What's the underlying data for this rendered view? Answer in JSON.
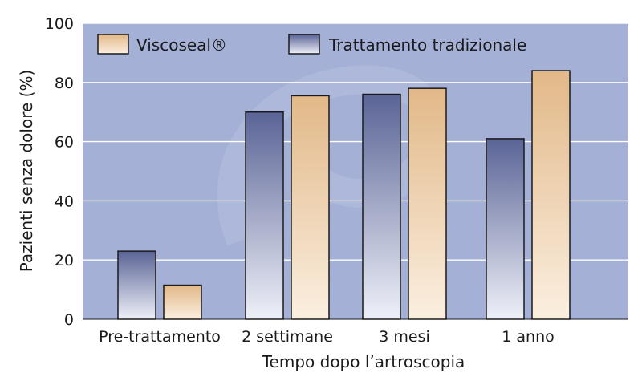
{
  "chart_data": {
    "type": "bar",
    "title": "",
    "xlabel": "Tempo dopo l’artroscopia",
    "ylabel": "Pazienti senza dolore (%)",
    "ylim": [
      0,
      100
    ],
    "yticks": [
      "0",
      "20",
      "40",
      "60",
      "80",
      "100"
    ],
    "categories": [
      "Pre-trattamento",
      "2 settimane",
      "3 mesi",
      "1 anno"
    ],
    "series": [
      {
        "name": "Trattamento tradizionale",
        "values": [
          23,
          70,
          76,
          61
        ],
        "color": "#5a6496"
      },
      {
        "name": "Viscoseal®",
        "values": [
          11.5,
          75.5,
          78,
          84
        ],
        "color": "#e2b888"
      }
    ],
    "grid": true,
    "legend_position": "top",
    "colors": {
      "plot_background": "#a4b0d6",
      "gridline": "#ffffff",
      "blue_bar_top": "#5a6496",
      "blue_bar_bottom": "#eef0f8",
      "tan_bar_top": "#e2b888",
      "tan_bar_bottom": "#fbefe0"
    }
  }
}
